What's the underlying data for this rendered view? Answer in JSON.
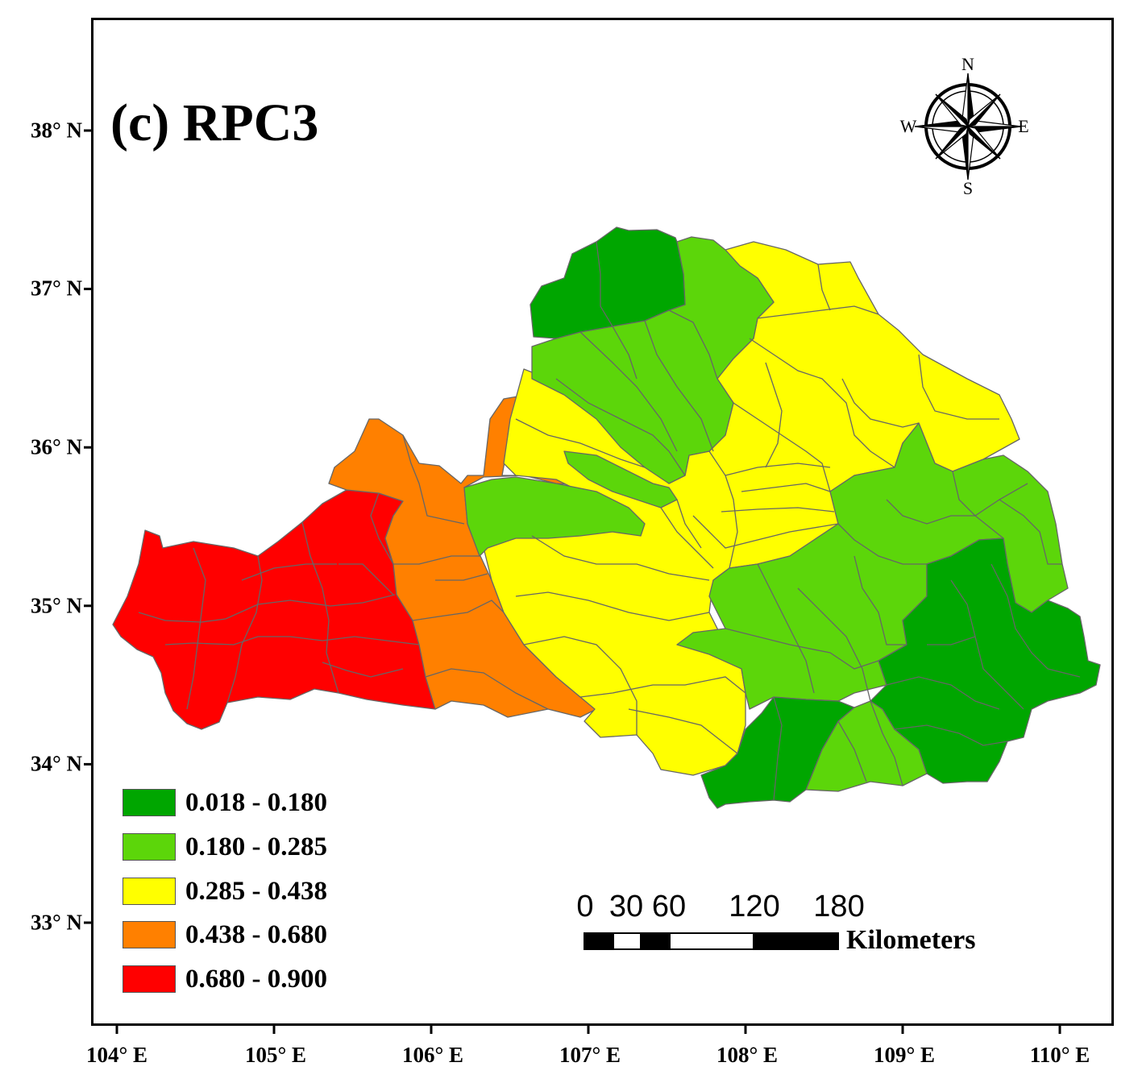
{
  "title": "(c) RPC3",
  "axes": {
    "latitude_labels": [
      {
        "value": 38,
        "label": "38° N"
      },
      {
        "value": 37,
        "label": "37° N"
      },
      {
        "value": 36,
        "label": "36° N"
      },
      {
        "value": 35,
        "label": "35° N"
      },
      {
        "value": 34,
        "label": "34° N"
      },
      {
        "value": 33,
        "label": "33° N"
      }
    ],
    "longitude_labels": [
      {
        "value": 104,
        "label": "104° E"
      },
      {
        "value": 105,
        "label": "105° E"
      },
      {
        "value": 106,
        "label": "106° E"
      },
      {
        "value": 107,
        "label": "107° E"
      },
      {
        "value": 108,
        "label": "108° E"
      },
      {
        "value": 109,
        "label": "109° E"
      },
      {
        "value": 110,
        "label": "110° E"
      }
    ]
  },
  "legend": [
    {
      "label": "0.018 - 0.180",
      "color": "#00a600"
    },
    {
      "label": "0.180 - 0.285",
      "color": "#5cd60a"
    },
    {
      "label": "0.285 - 0.438",
      "color": "#ffff00"
    },
    {
      "label": "0.438 - 0.680",
      "color": "#ff8000"
    },
    {
      "label": "0.680 - 0.900",
      "color": "#ff0000"
    }
  ],
  "scale_bar": {
    "ticks": [
      "0",
      "30",
      "60",
      "120",
      "180"
    ],
    "unit": "Kilometers"
  },
  "compass": {
    "n": "N",
    "s": "S",
    "e": "E",
    "w": "W"
  },
  "colors": {
    "boundary": "#666666",
    "frame": "#000000"
  }
}
